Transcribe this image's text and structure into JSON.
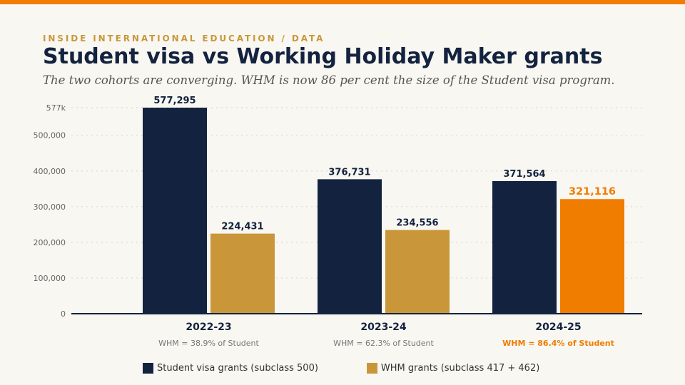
{
  "header": {
    "kicker": "INSIDE INTERNATIONAL EDUCATION / DATA",
    "title": "Student visa vs Working Holiday Maker grants",
    "subtitle": "The two cohorts are converging. WHM is now 86 per cent the size of the Student visa program."
  },
  "colors": {
    "accent": "#f07c00",
    "student": "#13233f",
    "whm": "#c9973a",
    "whm_highlight": "#f07c00"
  },
  "chart_data": {
    "type": "bar",
    "title": "Student visa vs Working Holiday Maker grants",
    "subtitle": "The two cohorts are converging. WHM is now 86 per cent the size of the Student visa program.",
    "categories": [
      "2022-23",
      "2023-24",
      "2024-25"
    ],
    "series": [
      {
        "name": "Student visa grants (subclass 500)",
        "values": [
          577295,
          376731,
          371564
        ],
        "labels": [
          "577,295",
          "376,731",
          "371,564"
        ]
      },
      {
        "name": "WHM grants (subclass 417 + 462)",
        "values": [
          224431,
          234556,
          321116
        ],
        "labels": [
          "224,431",
          "234,556",
          "321,116"
        ]
      }
    ],
    "ratio_notes": [
      "WHM = 38.9% of Student",
      "WHM = 62.3% of Student",
      "WHM = 86.4% of Student"
    ],
    "highlight_category": "2024-25",
    "ylim": [
      0,
      577295
    ],
    "yticks": [
      {
        "value": 0,
        "label": "0"
      },
      {
        "value": 100000,
        "label": "100,000"
      },
      {
        "value": 200000,
        "label": "200,000"
      },
      {
        "value": 300000,
        "label": "300,000"
      },
      {
        "value": 400000,
        "label": "400,000"
      },
      {
        "value": 500000,
        "label": "500,000"
      },
      {
        "value": 577295,
        "label": "577k"
      }
    ],
    "grid": true,
    "legend_position": "bottom-left"
  }
}
